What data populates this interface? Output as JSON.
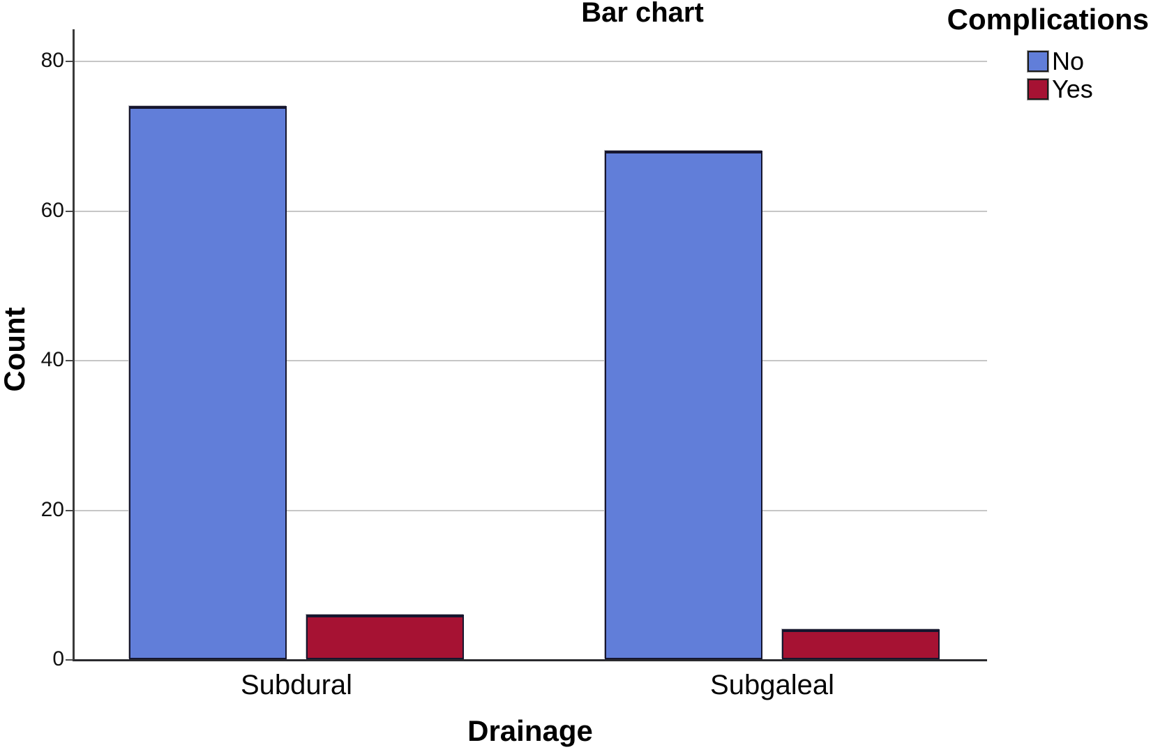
{
  "chart_data": {
    "type": "bar",
    "title": "Bar chart",
    "categories": [
      "Subdural",
      "Subgaleal"
    ],
    "series": [
      {
        "name": "No",
        "color": "#617ED9",
        "values": [
          74,
          68
        ]
      },
      {
        "name": "Yes",
        "color": "#A61233",
        "values": [
          6,
          4
        ]
      }
    ],
    "xlabel": "Drainage",
    "ylabel": "Count",
    "ylim": [
      0,
      84
    ],
    "yticks": [
      0,
      20,
      40,
      60,
      80
    ],
    "legend_title": "Complications",
    "legend_position": "top-right",
    "grid": true,
    "grid_color": "#C6C6C6",
    "axis_color": "#3A3A3A",
    "bar_border_color": "#16162E",
    "background": "#FFFFFF"
  }
}
